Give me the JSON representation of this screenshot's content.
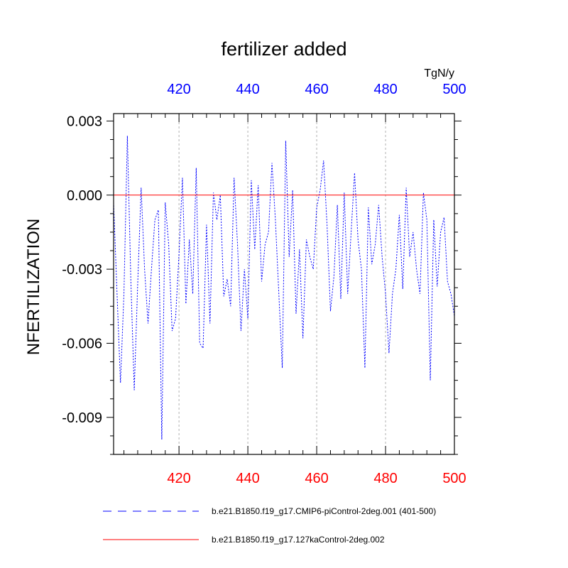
{
  "chart_data": {
    "type": "line",
    "title": "fertilizer added",
    "units": "TgN/y",
    "ylabel": "NFERTILIZATION",
    "xlabel": "",
    "xlim": [
      401,
      500
    ],
    "ylim": [
      -0.0105,
      0.0033
    ],
    "x_ticks": [
      420,
      440,
      460,
      480,
      500
    ],
    "x_tick_labels": [
      "420",
      "440",
      "460",
      "480",
      "500"
    ],
    "y_ticks": [
      0.003,
      0.0,
      -0.003,
      -0.006,
      -0.009
    ],
    "y_tick_labels": [
      "0.003",
      "0.000",
      "-0.003",
      "-0.006",
      "-0.009"
    ],
    "grid": "vertical dashed",
    "axis_colors": {
      "bottom": "#ff0000",
      "top": "#0000ff"
    },
    "series": [
      {
        "name": "b.e21.B1850.f19_g17.CMIP6-piControl-2deg.001 (401-500)",
        "color": "#0000ff",
        "style": "dashed",
        "x": [
          401,
          402,
          403,
          404,
          405,
          406,
          407,
          408,
          409,
          410,
          411,
          412,
          413,
          414,
          415,
          416,
          417,
          418,
          419,
          420,
          421,
          422,
          423,
          424,
          425,
          426,
          427,
          428,
          429,
          430,
          431,
          432,
          433,
          434,
          435,
          436,
          437,
          438,
          439,
          440,
          441,
          442,
          443,
          444,
          445,
          446,
          447,
          448,
          449,
          450,
          451,
          452,
          453,
          454,
          455,
          456,
          457,
          458,
          459,
          460,
          461,
          462,
          463,
          464,
          465,
          466,
          467,
          468,
          469,
          470,
          471,
          472,
          473,
          474,
          475,
          476,
          477,
          478,
          479,
          480,
          481,
          482,
          483,
          484,
          485,
          486,
          487,
          488,
          489,
          490,
          491,
          492,
          493,
          494,
          495,
          496,
          497,
          498,
          499,
          500
        ],
        "y": [
          -0.0003,
          -0.004,
          -0.0076,
          -0.004,
          0.0024,
          -0.0034,
          -0.0079,
          -0.0036,
          0.0003,
          -0.003,
          -0.0052,
          -0.003,
          -0.001,
          -0.0006,
          -0.0099,
          -0.0003,
          -0.002,
          -0.0055,
          -0.005,
          -0.0024,
          0.0007,
          -0.0044,
          -0.0018,
          -0.004,
          0.0011,
          -0.006,
          -0.0062,
          -0.0012,
          -0.0052,
          0.0001,
          -0.001,
          0.0,
          -0.0041,
          -0.0034,
          -0.0045,
          0.0007,
          -0.002,
          -0.0055,
          -0.003,
          -0.005,
          0.0006,
          -0.0022,
          0.0004,
          -0.0035,
          -0.002,
          -0.0015,
          0.0013,
          -0.001,
          -0.004,
          -0.007,
          0.0022,
          -0.0025,
          0.0002,
          -0.0048,
          -0.0022,
          -0.0058,
          -0.0018,
          -0.0025,
          -0.003,
          -0.0005,
          0.0002,
          0.0014,
          -0.0012,
          -0.0047,
          -0.0033,
          -0.0004,
          -0.0042,
          0.0001,
          -0.004,
          -0.0015,
          0.0009,
          -0.0018,
          -0.003,
          -0.007,
          -0.0005,
          -0.0028,
          -0.002,
          -0.0004,
          -0.0025,
          -0.004,
          -0.0064,
          -0.004,
          -0.003,
          -0.0008,
          -0.0038,
          0.0003,
          -0.0025,
          -0.0015,
          -0.003,
          -0.004,
          0.0001,
          -0.001,
          -0.0075,
          -0.001,
          -0.0037,
          -0.0015,
          -0.0009,
          -0.0035,
          -0.004,
          -0.0049
        ]
      },
      {
        "name": "b.e21.B1850.f19_g17.127kaControl-2deg.002",
        "color": "#ff0000",
        "style": "solid",
        "x": [
          401,
          500
        ],
        "y": [
          0.0,
          0.0
        ]
      }
    ],
    "legend": {
      "placement": "bottom",
      "entries": [
        "b.e21.B1850.f19_g17.CMIP6-piControl-2deg.001 (401-500)",
        "b.e21.B1850.f19_g17.127kaControl-2deg.002"
      ]
    }
  }
}
